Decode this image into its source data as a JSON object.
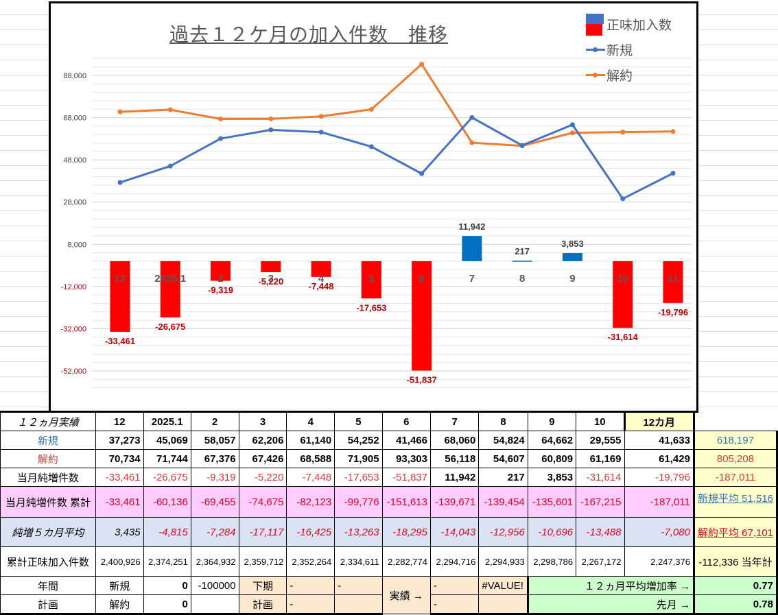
{
  "chart_data": {
    "type": "bar+line",
    "title": "過去１２ケ月の加入件数　推移",
    "categories": [
      "12",
      "2025.1",
      "2",
      "3",
      "4",
      "5",
      "6",
      "7",
      "8",
      "9",
      "10",
      "11"
    ],
    "series": [
      {
        "name": "正味加入数",
        "type": "bar",
        "values": [
          -33461,
          -26675,
          -9319,
          -5220,
          -7448,
          -17653,
          -51837,
          11942,
          217,
          3853,
          -31614,
          -19796
        ],
        "color_positive": "#0070c0",
        "color_negative": "#ff0000"
      },
      {
        "name": "新規",
        "type": "line",
        "values": [
          37273,
          45069,
          58057,
          62206,
          61140,
          54252,
          41466,
          68060,
          54824,
          64662,
          29555,
          41633
        ],
        "color": "#4472c4"
      },
      {
        "name": "解約",
        "type": "line",
        "values": [
          70734,
          71744,
          67376,
          67426,
          68588,
          71905,
          93303,
          56118,
          54607,
          60809,
          61169,
          61429
        ],
        "color": "#ed7d31"
      }
    ],
    "y_ticks": [
      "88,000",
      "68,000",
      "48,000",
      "28,000",
      "8,000",
      "-12,000",
      "-32,000",
      "-52,000"
    ],
    "ylim": [
      -62000,
      98000
    ],
    "grid": true,
    "legend_position": "top-right"
  },
  "legend": {
    "net": "正味加入数",
    "new": "新規",
    "cancel": "解約"
  },
  "table": {
    "header": {
      "label": "１２ヵ月実績",
      "months": [
        "12",
        "2025.1",
        "2",
        "3",
        "4",
        "5",
        "6",
        "7",
        "8",
        "9",
        "10",
        "11"
      ],
      "total": "12カ月"
    },
    "new": {
      "label": "新規",
      "values": [
        "37,273",
        "45,069",
        "58,057",
        "62,206",
        "61,140",
        "54,252",
        "41,466",
        "68,060",
        "54,824",
        "64,662",
        "29,555",
        "41,633"
      ],
      "total": "618,197"
    },
    "cancel": {
      "label": "解約",
      "values": [
        "70,734",
        "71,744",
        "67,376",
        "67,426",
        "68,588",
        "71,905",
        "93,303",
        "56,118",
        "54,607",
        "60,809",
        "61,169",
        "61,429"
      ],
      "total": "805,208"
    },
    "net": {
      "label": "当月純増件数",
      "values": [
        "-33,461",
        "-26,675",
        "-9,319",
        "-5,220",
        "-7,448",
        "-17,653",
        "-51,837",
        "11,942",
        "217",
        "3,853",
        "-31,614",
        "-19,796"
      ],
      "total": "-187,011"
    },
    "cumulative": {
      "label": "当月純増件数 累計",
      "values": [
        "-33,461",
        "-60,136",
        "-69,455",
        "-74,675",
        "-82,123",
        "-99,776",
        "-151,613",
        "-139,671",
        "-139,454",
        "-135,601",
        "-167,215",
        "-187,011"
      ],
      "total": "新規平均 51,516"
    },
    "avg5": {
      "label": "純増５カ月平均",
      "values": [
        "3,435",
        "-4,815",
        "-7,284",
        "-17,117",
        "-16,425",
        "-13,263",
        "-18,295",
        "-14,043",
        "-12,956",
        "-10,696",
        "-13,488",
        "-7,080"
      ],
      "total": "解約平均 67,101"
    },
    "total_net": {
      "label": "累計正味加入件数",
      "values": [
        "2,400,926",
        "2,374,251",
        "2,364,932",
        "2,359,712",
        "2,352,264",
        "2,334,611",
        "2,282,774",
        "2,294,716",
        "2,294,933",
        "2,298,786",
        "2,267,172",
        "2,247,376"
      ],
      "total": "-112,336 当年計"
    },
    "plan": {
      "annual_label": "年間",
      "plan_label": "計画",
      "new_label": "新規",
      "cancel_label": "解約",
      "new_value": "0",
      "cancel_value": "0",
      "target": "-100000",
      "h2_label": "下期",
      "h2_plan_label": "計画",
      "dash1": "-",
      "dash2": "-",
      "dash3": "-",
      "actual_label": "実績 →",
      "dash4": "-",
      "dash5": "-",
      "error": "#VALUE!",
      "avg_rate_label": "１２ヵ月平均増加率 →",
      "avg_rate_value": "0.77",
      "last_month_label": "先月 →",
      "last_month_value": "0.78"
    }
  }
}
